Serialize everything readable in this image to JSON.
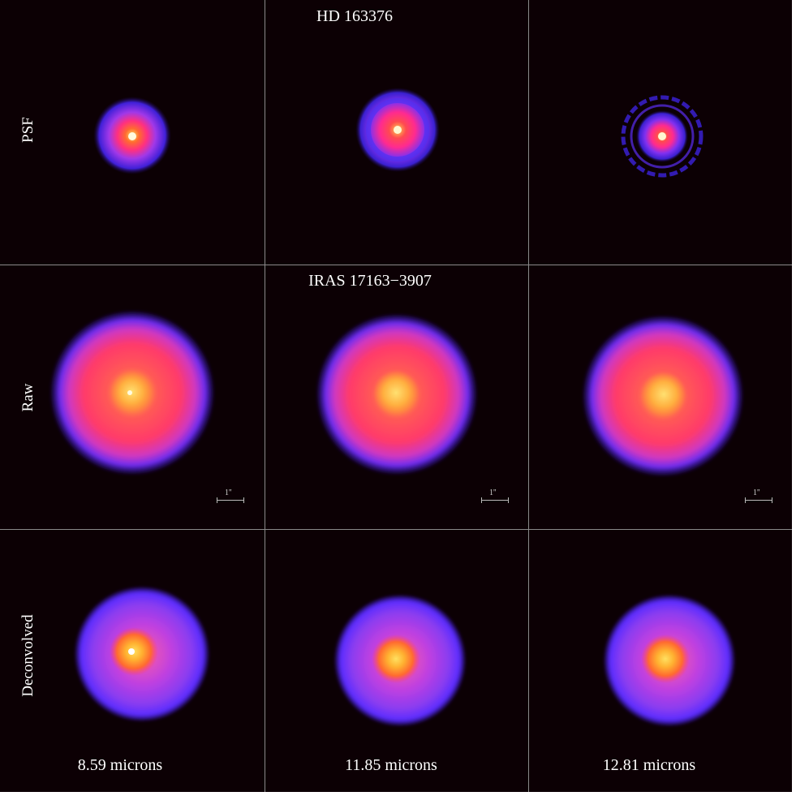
{
  "figure": {
    "colors": {
      "background": "#0c0004",
      "divider": "#8a8a8a",
      "colormap": [
        "#2a0a8a",
        "#5a2cff",
        "#c040e0",
        "#ff3a6a",
        "#ff9020",
        "#ffe060",
        "#ffffff"
      ]
    },
    "row_titles": {
      "psf": "HD 163376",
      "object": "IRAS 17163−3907"
    },
    "row_labels": [
      "PSF",
      "Raw",
      "Deconvolved"
    ],
    "column_labels": [
      "8.59 microns",
      "11.85 microns",
      "12.81 microns"
    ],
    "scale_bar_label": "1''"
  }
}
